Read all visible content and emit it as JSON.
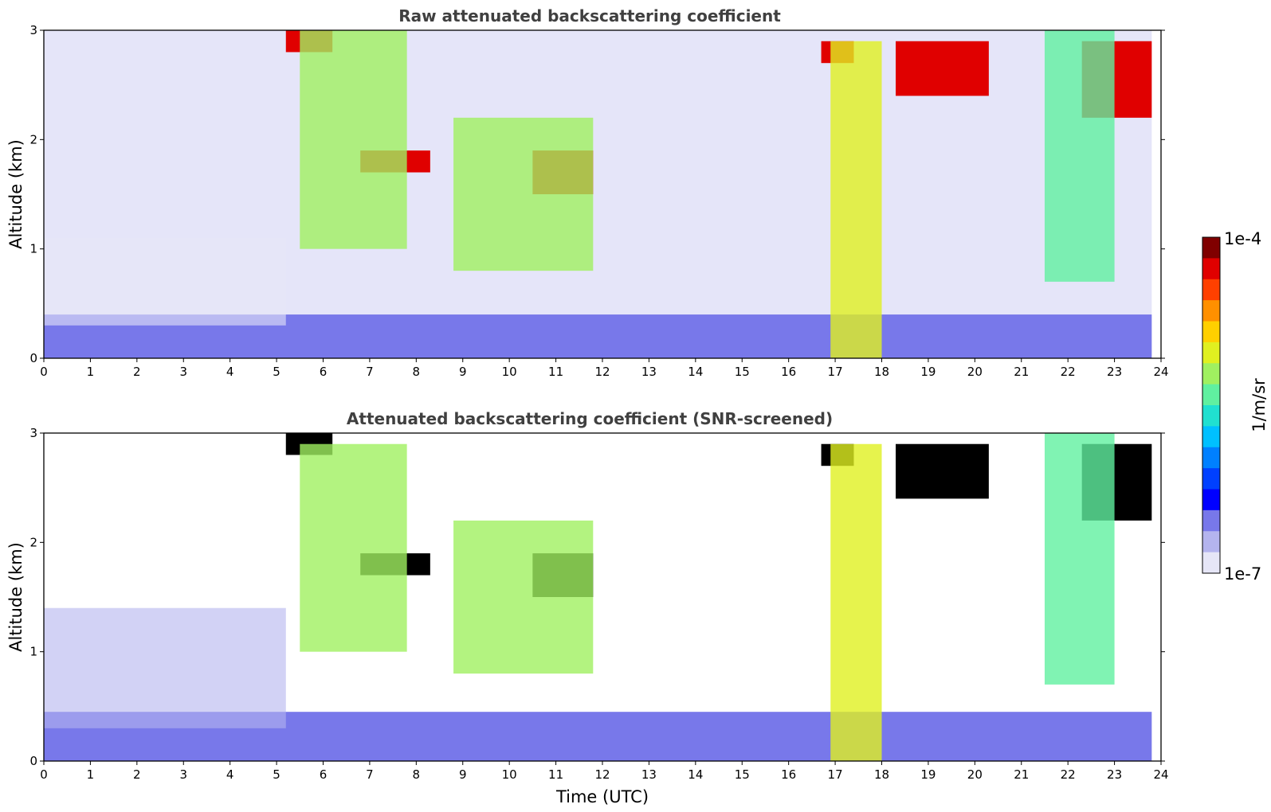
{
  "chart_data": [
    {
      "type": "heatmap",
      "title": "Raw attenuated backscattering coefficient",
      "xlabel": "",
      "ylabel": "Altitude (km)",
      "xlim": [
        0,
        24
      ],
      "ylim": [
        0,
        3
      ],
      "xticks": [
        "0",
        "1",
        "2",
        "3",
        "4",
        "5",
        "6",
        "7",
        "8",
        "9",
        "10",
        "11",
        "12",
        "13",
        "14",
        "15",
        "16",
        "17",
        "18",
        "19",
        "20",
        "21",
        "22",
        "23",
        "24"
      ],
      "yticks": [
        "0",
        "1",
        "2",
        "3"
      ],
      "grid": false,
      "features": [
        {
          "kind": "noise",
          "x": [
            0,
            23.8
          ],
          "y": [
            0.4,
            3
          ],
          "value": -6.7
        },
        {
          "kind": "layer",
          "x": [
            0,
            23.8
          ],
          "y": [
            0,
            0.4
          ],
          "value": -6.6
        },
        {
          "kind": "aerosol",
          "x": [
            0,
            5.2
          ],
          "y": [
            0.3,
            1.1
          ],
          "value": -6.9
        },
        {
          "kind": "cloud",
          "x": [
            5.2,
            6.2
          ],
          "y": [
            2.8,
            3.0
          ],
          "value": -4.2
        },
        {
          "kind": "cloud",
          "x": [
            6.8,
            8.3
          ],
          "y": [
            1.7,
            1.9
          ],
          "value": -4.2
        },
        {
          "kind": "cloud",
          "x": [
            10.5,
            11.8
          ],
          "y": [
            1.5,
            1.9
          ],
          "value": -4.2
        },
        {
          "kind": "cloud",
          "x": [
            16.7,
            17.4
          ],
          "y": [
            2.7,
            2.9
          ],
          "value": -4.2
        },
        {
          "kind": "cloud",
          "x": [
            18.3,
            20.3
          ],
          "y": [
            2.4,
            2.9
          ],
          "value": -4.2
        },
        {
          "kind": "cloud",
          "x": [
            22.3,
            23.8
          ],
          "y": [
            2.2,
            2.9
          ],
          "value": -4.3
        },
        {
          "kind": "virga",
          "x": [
            5.5,
            7.8
          ],
          "y": [
            1.0,
            3.0
          ],
          "value": -5.3
        },
        {
          "kind": "virga",
          "x": [
            8.8,
            11.8
          ],
          "y": [
            0.8,
            2.2
          ],
          "value": -5.2
        },
        {
          "kind": "virga",
          "x": [
            16.9,
            18.0
          ],
          "y": [
            0.0,
            2.9
          ],
          "value": -5.0
        },
        {
          "kind": "virga",
          "x": [
            21.5,
            23.0
          ],
          "y": [
            0.7,
            3.0
          ],
          "value": -5.5
        }
      ]
    },
    {
      "type": "heatmap",
      "title": "Attenuated backscattering coefficient (SNR-screened)",
      "xlabel": "Time (UTC)",
      "ylabel": "Altitude (km)",
      "xlim": [
        0,
        24
      ],
      "ylim": [
        0,
        3
      ],
      "xticks": [
        "0",
        "1",
        "2",
        "3",
        "4",
        "5",
        "6",
        "7",
        "8",
        "9",
        "10",
        "11",
        "12",
        "13",
        "14",
        "15",
        "16",
        "17",
        "18",
        "19",
        "20",
        "21",
        "22",
        "23",
        "24"
      ],
      "yticks": [
        "0",
        "1",
        "2",
        "3"
      ],
      "grid": false,
      "masked_value_color": "#000000",
      "features": [
        {
          "kind": "layer",
          "x": [
            0,
            23.8
          ],
          "y": [
            0,
            0.45
          ],
          "value": -6.6
        },
        {
          "kind": "aerosol",
          "x": [
            0,
            5.2
          ],
          "y": [
            0.3,
            1.4
          ],
          "value": -6.7
        },
        {
          "kind": "cloud",
          "x": [
            5.2,
            6.2
          ],
          "y": [
            2.8,
            3.0
          ],
          "value": "masked"
        },
        {
          "kind": "cloud",
          "x": [
            6.8,
            8.3
          ],
          "y": [
            1.7,
            1.9
          ],
          "value": "masked"
        },
        {
          "kind": "cloud",
          "x": [
            10.5,
            11.8
          ],
          "y": [
            1.5,
            1.9
          ],
          "value": "masked"
        },
        {
          "kind": "cloud",
          "x": [
            16.7,
            17.4
          ],
          "y": [
            2.7,
            2.9
          ],
          "value": "masked"
        },
        {
          "kind": "cloud",
          "x": [
            18.3,
            20.3
          ],
          "y": [
            2.4,
            2.9
          ],
          "value": "masked"
        },
        {
          "kind": "cloud",
          "x": [
            22.3,
            23.8
          ],
          "y": [
            2.2,
            2.9
          ],
          "value": "masked"
        },
        {
          "kind": "virga",
          "x": [
            5.5,
            7.8
          ],
          "y": [
            1.0,
            2.9
          ],
          "value": -5.3
        },
        {
          "kind": "virga",
          "x": [
            8.8,
            11.8
          ],
          "y": [
            0.8,
            2.2
          ],
          "value": -5.2
        },
        {
          "kind": "virga",
          "x": [
            16.9,
            18.0
          ],
          "y": [
            0.0,
            2.9
          ],
          "value": -5.0
        },
        {
          "kind": "virga",
          "x": [
            21.5,
            23.0
          ],
          "y": [
            0.7,
            3.0
          ],
          "value": -5.5
        }
      ]
    }
  ],
  "colorbar": {
    "label": "1/m/sr",
    "max_label": "1e-4",
    "min_label": "1e-7",
    "range": [
      -7,
      -4
    ],
    "colors": [
      "#e6e6f7",
      "#b4b4ee",
      "#7878ea",
      "#0000ff",
      "#0040ff",
      "#0080ff",
      "#00c0ff",
      "#20e0d0",
      "#60f0a0",
      "#a0f060",
      "#e0f020",
      "#ffd000",
      "#ff9000",
      "#ff4000",
      "#e00000",
      "#800000"
    ]
  }
}
